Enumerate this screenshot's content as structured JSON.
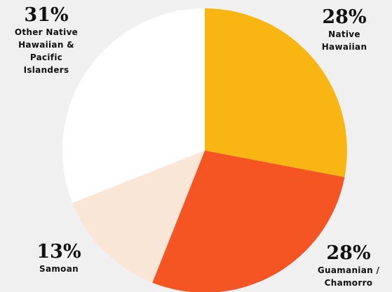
{
  "chart_data": {
    "type": "pie",
    "categories": [
      "Native Hawaiian",
      "Guamanian / Chamorro",
      "Samoan",
      "Other Native Hawaiian & Pacific Islanders"
    ],
    "values": [
      28,
      28,
      13,
      31
    ],
    "value_labels": [
      "28%",
      "28%",
      "13%",
      "31%"
    ],
    "colors": [
      "#f9b512",
      "#f55423",
      "#fae6d6",
      "#ffffff"
    ]
  }
}
